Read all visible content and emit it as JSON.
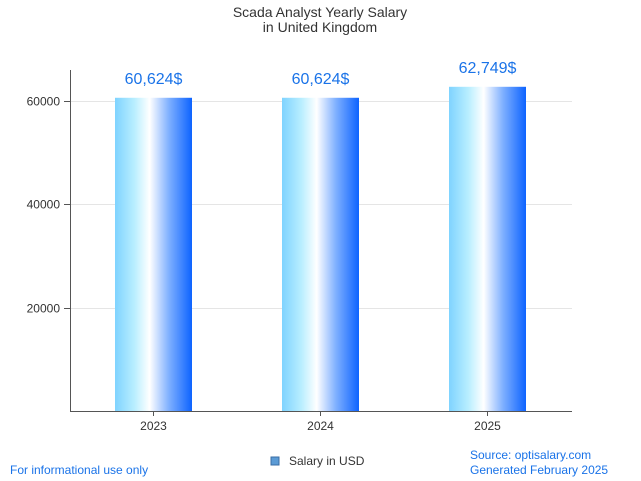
{
  "chart_data": {
    "type": "bar",
    "title_lines": [
      "Scada Analyst Yearly Salary",
      "in United Kingdom"
    ],
    "categories": [
      "2023",
      "2024",
      "2025"
    ],
    "series": [
      {
        "name": "Salary in USD",
        "values": [
          60624,
          60624,
          62749
        ]
      }
    ],
    "data_labels": [
      "60,624$",
      "60,624$",
      "62,749$"
    ],
    "yticks": [
      20000,
      40000,
      60000
    ],
    "ylim": [
      0,
      66000
    ],
    "grid": true,
    "legend_position": "bottom-center"
  },
  "footer": {
    "left": "For informational use only",
    "source": "Source: optisalary.com",
    "generated": "Generated February 2025"
  },
  "colors": {
    "bar_light": "#b3ecff",
    "bar_mid": "#7fd3ff",
    "bar_white": "#ffffff",
    "bar_dark": "#0d63ff",
    "accent_text": "#1a73e8",
    "axis": "#555555",
    "grid": "#e5e5e5"
  }
}
